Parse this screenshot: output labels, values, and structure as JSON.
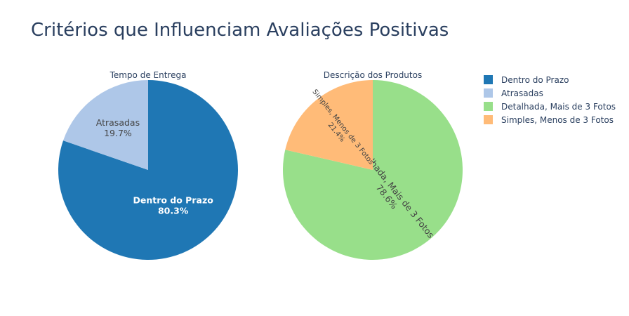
{
  "chart_data": {
    "type": "pie",
    "title": "Critérios que Influenciam Avaliações Positivas",
    "legend_placement": "top-right",
    "pies": [
      {
        "title": "Tempo de Entrega",
        "slices": [
          {
            "label": "Dentro do Prazo",
            "value": 80.3,
            "color": "#1f77b4",
            "text_color": "#ffffff",
            "bold": true
          },
          {
            "label": "Atrasadas",
            "value": 19.7,
            "color": "#aec7e8",
            "text_color": "#444444",
            "bold": false
          }
        ]
      },
      {
        "title": "Descrição dos Produtos",
        "slices": [
          {
            "label": "Detalhada, Mais de 3 Fotos",
            "value": 78.6,
            "color": "#98df8a",
            "text_color": "#444444",
            "bold": false
          },
          {
            "label": "Simples, Menos de 3 Fotos",
            "value": 21.4,
            "color": "#ffbb78",
            "text_color": "#444444",
            "bold": false
          }
        ]
      }
    ],
    "legend": [
      {
        "label": "Dentro do Prazo",
        "color": "#1f77b4"
      },
      {
        "label": "Atrasadas",
        "color": "#aec7e8"
      },
      {
        "label": "Detalhada, Mais de 3 Fotos",
        "color": "#98df8a"
      },
      {
        "label": "Simples, Menos de 3 Fotos",
        "color": "#ffbb78"
      }
    ]
  }
}
